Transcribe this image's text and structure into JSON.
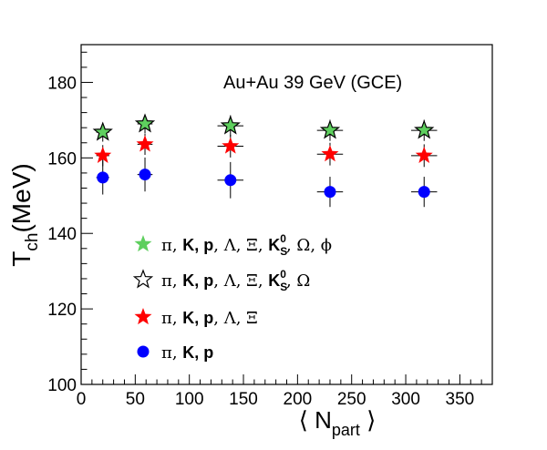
{
  "chart_data": {
    "type": "scatter",
    "title": "Au+Au 39 GeV (GCE)",
    "xlabel": {
      "pre": "⟨ N",
      "sub": "part",
      "post": " ⟩"
    },
    "ylabel": {
      "main": "T",
      "sub": "ch",
      "post": "(MeV)"
    },
    "xlim": [
      0,
      380
    ],
    "ylim": [
      100,
      190
    ],
    "xticks": [
      0,
      50,
      100,
      150,
      200,
      250,
      300,
      350
    ],
    "yticks": [
      100,
      120,
      140,
      160,
      180
    ],
    "grid": false,
    "legend_position": "bottom-left",
    "series": [
      {
        "key": "green",
        "legend": {
          "p1": "π, ",
          "p2": "K, p",
          "p3": ", Λ, Ξ, ",
          "p4": "K",
          "sub": "S",
          "sup": "0",
          "p5": ", Ω, ϕ"
        },
        "marker": "star-filled",
        "color": "#5ecf5e",
        "x": [
          20,
          59,
          138,
          230,
          317
        ],
        "y": [
          166.8,
          169.0,
          168.5,
          167.3,
          167.3
        ],
        "yerr": [
          2.5,
          2.5,
          2.8,
          2.8,
          2.8
        ],
        "xerr": [
          6,
          7,
          12,
          12,
          12
        ]
      },
      {
        "key": "open",
        "legend": {
          "p1": "π, ",
          "p2": "K, p",
          "p3": ", Λ, Ξ, ",
          "p4": "K",
          "sub": "S",
          "sup": "0",
          "p5": ",  Ω"
        },
        "marker": "star-open",
        "color": "#000000",
        "x": [
          20,
          59,
          138,
          230,
          317
        ],
        "y": [
          166.8,
          169.0,
          168.5,
          167.3,
          167.3
        ],
        "yerr": [
          2.5,
          2.5,
          2.8,
          2.8,
          2.8
        ],
        "xerr": [
          6,
          7,
          12,
          12,
          12
        ]
      },
      {
        "key": "red",
        "legend": {
          "p1": "π, ",
          "p2": "K, p",
          "p3": ", Λ, Ξ"
        },
        "marker": "star-filled",
        "color": "#ff0000",
        "x": [
          20,
          59,
          138,
          230,
          317
        ],
        "y": [
          160.6,
          163.6,
          163.1,
          161.0,
          160.6
        ],
        "yerr": [
          2.8,
          2.8,
          3.0,
          3.0,
          3.0
        ],
        "xerr": [
          6,
          7,
          12,
          12,
          12
        ]
      },
      {
        "key": "blue",
        "legend": {
          "p1": "π, ",
          "p2": "K, p"
        },
        "marker": "circle",
        "color": "#0000ff",
        "x": [
          20,
          59,
          138,
          230,
          317
        ],
        "y": [
          154.8,
          155.6,
          154.1,
          151.0,
          151.0
        ],
        "yerr": [
          4.5,
          4.5,
          4.8,
          4.0,
          4.0
        ],
        "xerr": [
          6,
          7,
          12,
          12,
          12
        ]
      }
    ]
  }
}
